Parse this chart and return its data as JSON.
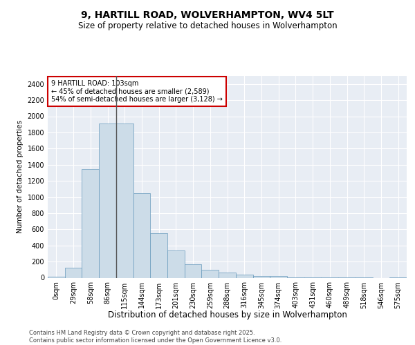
{
  "title1": "9, HARTILL ROAD, WOLVERHAMPTON, WV4 5LT",
  "title2": "Size of property relative to detached houses in Wolverhampton",
  "xlabel": "Distribution of detached houses by size in Wolverhampton",
  "ylabel": "Number of detached properties",
  "bar_color": "#ccdce8",
  "bar_edge_color": "#6699bb",
  "background_color": "#e8edf4",
  "annotation_text": "9 HARTILL ROAD: 103sqm\n← 45% of detached houses are smaller (2,589)\n54% of semi-detached houses are larger (3,128) →",
  "annotation_box_color": "white",
  "annotation_edge_color": "#cc0000",
  "vline_x": 3.5,
  "vline_color": "#555555",
  "categories": [
    "0sqm",
    "29sqm",
    "58sqm",
    "86sqm",
    "115sqm",
    "144sqm",
    "173sqm",
    "201sqm",
    "230sqm",
    "259sqm",
    "288sqm",
    "316sqm",
    "345sqm",
    "374sqm",
    "403sqm",
    "431sqm",
    "460sqm",
    "489sqm",
    "518sqm",
    "546sqm",
    "575sqm"
  ],
  "values": [
    10,
    120,
    1350,
    1910,
    1910,
    1050,
    555,
    335,
    165,
    100,
    60,
    35,
    25,
    20,
    5,
    5,
    5,
    5,
    5,
    0,
    5
  ],
  "ylim": [
    0,
    2500
  ],
  "yticks": [
    0,
    200,
    400,
    600,
    800,
    1000,
    1200,
    1400,
    1600,
    1800,
    2000,
    2200,
    2400
  ],
  "footer": "Contains HM Land Registry data © Crown copyright and database right 2025.\nContains public sector information licensed under the Open Government Licence v3.0.",
  "title1_fontsize": 10,
  "title2_fontsize": 8.5,
  "xlabel_fontsize": 8.5,
  "ylabel_fontsize": 7.5,
  "tick_fontsize": 7,
  "footer_fontsize": 6,
  "ann_fontsize": 7
}
